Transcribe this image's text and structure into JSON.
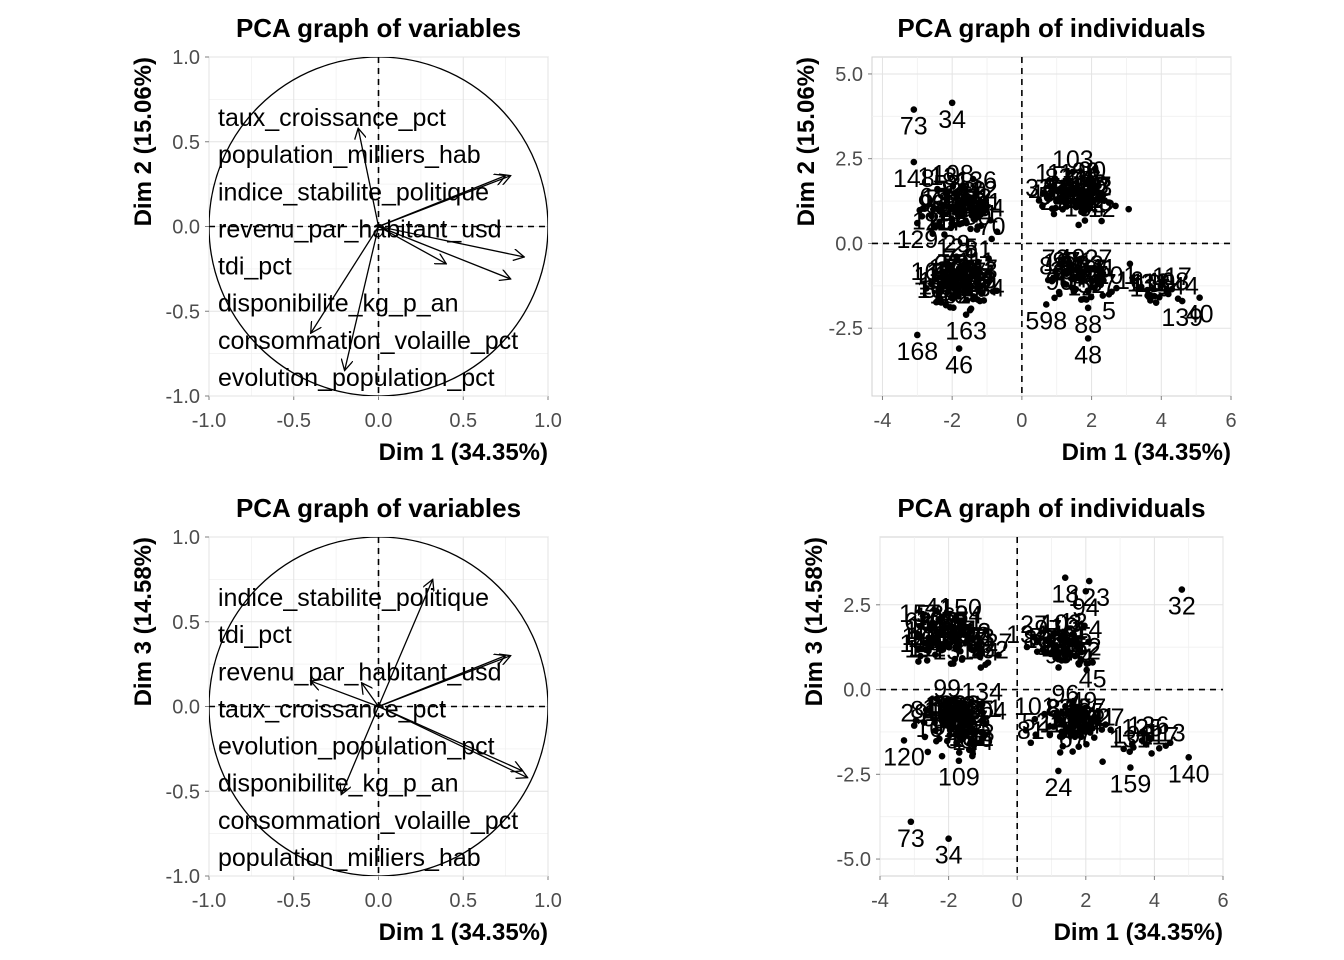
{
  "chart_data": [
    {
      "type": "scatter",
      "id": "var12",
      "title": "PCA graph of variables",
      "xlabel": "Dim 1 (34.35%)",
      "ylabel": "Dim 2 (15.06%)",
      "xlim": [
        -1.0,
        1.0
      ],
      "ylim": [
        -1.0,
        1.0
      ],
      "xticks": [
        -1.0,
        -0.5,
        0.0,
        0.5,
        1.0
      ],
      "xtick_labels": [
        "-1.0",
        "-0.5",
        "0.0",
        "0.5",
        "1.0"
      ],
      "yticks": [
        -1.0,
        -0.5,
        0.0,
        0.5,
        1.0
      ],
      "ytick_labels": [
        "-1.0",
        "-0.5",
        "0.0",
        "0.5",
        "1.0"
      ],
      "variables": [
        {
          "label": "taux_croissance_pct",
          "x": -0.12,
          "y": 0.58
        },
        {
          "label": "population_milliers_hab",
          "x": 0.75,
          "y": 0.3
        },
        {
          "label": "indice_stabilite_politique",
          "x": 0.78,
          "y": 0.3
        },
        {
          "label": "revenu_par_habitant_usd",
          "x": 0.86,
          "y": -0.18
        },
        {
          "label": "tdi_pct",
          "x": 0.4,
          "y": -0.22
        },
        {
          "label": "disponibilite_kg_p_an",
          "x": 0.78,
          "y": -0.31
        },
        {
          "label": "consommation_volaille_pct",
          "x": -0.4,
          "y": -0.63
        },
        {
          "label": "evolution_population_pct",
          "x": -0.2,
          "y": -0.85
        }
      ],
      "label_lines": [
        "taux_croissance_pct",
        "population_milliers_hab",
        "indice_stabilite_politique",
        "revenu_par_habitant_usd",
        "tdi_pct",
        "disponibilite_kg_p_an",
        "consommation_volaille_pct",
        "evolution_population_pct"
      ]
    },
    {
      "type": "scatter",
      "id": "ind12",
      "title": "PCA graph of individuals",
      "xlabel": "Dim 1 (34.35%)",
      "ylabel": "Dim 2 (15.06%)",
      "xlim": [
        -4.3,
        6.0
      ],
      "ylim": [
        -4.5,
        5.5
      ],
      "xticks": [
        -4,
        -2,
        0,
        2,
        4,
        6
      ],
      "xtick_labels": [
        "-4",
        "-2",
        "0",
        "2",
        "4",
        "6"
      ],
      "yticks": [
        -2.5,
        0.0,
        2.5,
        5.0
      ],
      "ytick_labels": [
        "-2.5",
        "0.0",
        "2.5",
        "5.0"
      ],
      "labeled_points": [
        {
          "label": "73",
          "x": -3.1,
          "y": 3.95
        },
        {
          "label": "34",
          "x": -2.0,
          "y": 4.15
        },
        {
          "label": "148",
          "x": -3.1,
          "y": 2.4
        },
        {
          "label": "55",
          "x": -1.4,
          "y": 1.9
        },
        {
          "label": "78",
          "x": 2.1,
          "y": 2.2
        },
        {
          "label": "15",
          "x": 2.2,
          "y": 1.7
        },
        {
          "label": "129",
          "x": -3.0,
          "y": 0.6
        },
        {
          "label": "168",
          "x": -3.0,
          "y": -2.7
        },
        {
          "label": "46",
          "x": -1.8,
          "y": -3.1
        },
        {
          "label": "48",
          "x": 1.9,
          "y": -2.8
        },
        {
          "label": "139",
          "x": 4.6,
          "y": -1.7
        },
        {
          "label": "40",
          "x": 5.1,
          "y": -1.6
        },
        {
          "label": "16",
          "x": 3.1,
          "y": -0.6
        },
        {
          "label": "5",
          "x": 2.5,
          "y": -1.5
        },
        {
          "label": "88",
          "x": 1.9,
          "y": -1.9
        },
        {
          "label": "598",
          "x": 0.7,
          "y": -1.8
        },
        {
          "label": "163",
          "x": -1.6,
          "y": -2.1
        }
      ]
    },
    {
      "type": "scatter",
      "id": "var13",
      "title": "PCA graph of variables",
      "xlabel": "Dim 1 (34.35%)",
      "ylabel": "Dim 3 (14.58%)",
      "xlim": [
        -1.0,
        1.0
      ],
      "ylim": [
        -1.0,
        1.0
      ],
      "xticks": [
        -1.0,
        -0.5,
        0.0,
        0.5,
        1.0
      ],
      "xtick_labels": [
        "-1.0",
        "-0.5",
        "0.0",
        "0.5",
        "1.0"
      ],
      "yticks": [
        -1.0,
        -0.5,
        0.0,
        0.5,
        1.0
      ],
      "ytick_labels": [
        "-1.0",
        "-0.5",
        "0.0",
        "0.5",
        "1.0"
      ],
      "variables": [
        {
          "label": "indice_stabilite_politique",
          "x": 0.78,
          "y": 0.3
        },
        {
          "label": "tdi_pct",
          "x": 0.32,
          "y": 0.75
        },
        {
          "label": "revenu_par_habitant_usd",
          "x": 0.75,
          "y": 0.3
        },
        {
          "label": "taux_croissance_pct",
          "x": -0.4,
          "y": 0.15
        },
        {
          "label": "evolution_population_pct",
          "x": -0.1,
          "y": 0.14
        },
        {
          "label": "disponibilite_kg_p_an",
          "x": 0.88,
          "y": -0.42
        },
        {
          "label": "consommation_volaille_pct",
          "x": 0.85,
          "y": -0.38
        },
        {
          "label": "population_milliers_hab",
          "x": -0.22,
          "y": -0.52
        }
      ],
      "label_lines": [
        "indice_stabilite_politique",
        "tdi_pct",
        "revenu_par_habitant_usd",
        "taux_croissance_pct",
        "evolution_population_pct",
        "disponibilite_kg_p_an",
        "consommation_volaille_pct",
        "population_milliers_hab"
      ]
    },
    {
      "type": "scatter",
      "id": "ind13",
      "title": "PCA graph of individuals",
      "xlabel": "Dim 1 (34.35%)",
      "ylabel": "Dim 3 (14.58%)",
      "xlim": [
        -4.0,
        6.0
      ],
      "ylim": [
        -5.5,
        4.5
      ],
      "xticks": [
        -4,
        -2,
        0,
        2,
        4,
        6
      ],
      "xtick_labels": [
        "-4",
        "-2",
        "0",
        "2",
        "4",
        "6"
      ],
      "yticks": [
        -5.0,
        -2.5,
        0.0,
        2.5
      ],
      "ytick_labels": [
        "-5.0",
        "-2.5",
        "0.0",
        "2.5"
      ],
      "labeled_points": [
        {
          "label": "18",
          "x": 1.4,
          "y": 3.3
        },
        {
          "label": "123",
          "x": 2.1,
          "y": 3.2
        },
        {
          "label": "94",
          "x": 2.0,
          "y": 2.9
        },
        {
          "label": "32",
          "x": 4.8,
          "y": 2.95
        },
        {
          "label": "73",
          "x": -3.1,
          "y": -3.9
        },
        {
          "label": "34",
          "x": -2.0,
          "y": -4.4
        },
        {
          "label": "24",
          "x": 1.2,
          "y": -2.4
        },
        {
          "label": "159",
          "x": 3.3,
          "y": -2.3
        },
        {
          "label": "140",
          "x": 5.0,
          "y": -2.0
        },
        {
          "label": "45",
          "x": 2.2,
          "y": 0.8
        },
        {
          "label": "109",
          "x": -1.7,
          "y": -2.1
        },
        {
          "label": "120",
          "x": -3.3,
          "y": -1.5
        }
      ]
    }
  ]
}
